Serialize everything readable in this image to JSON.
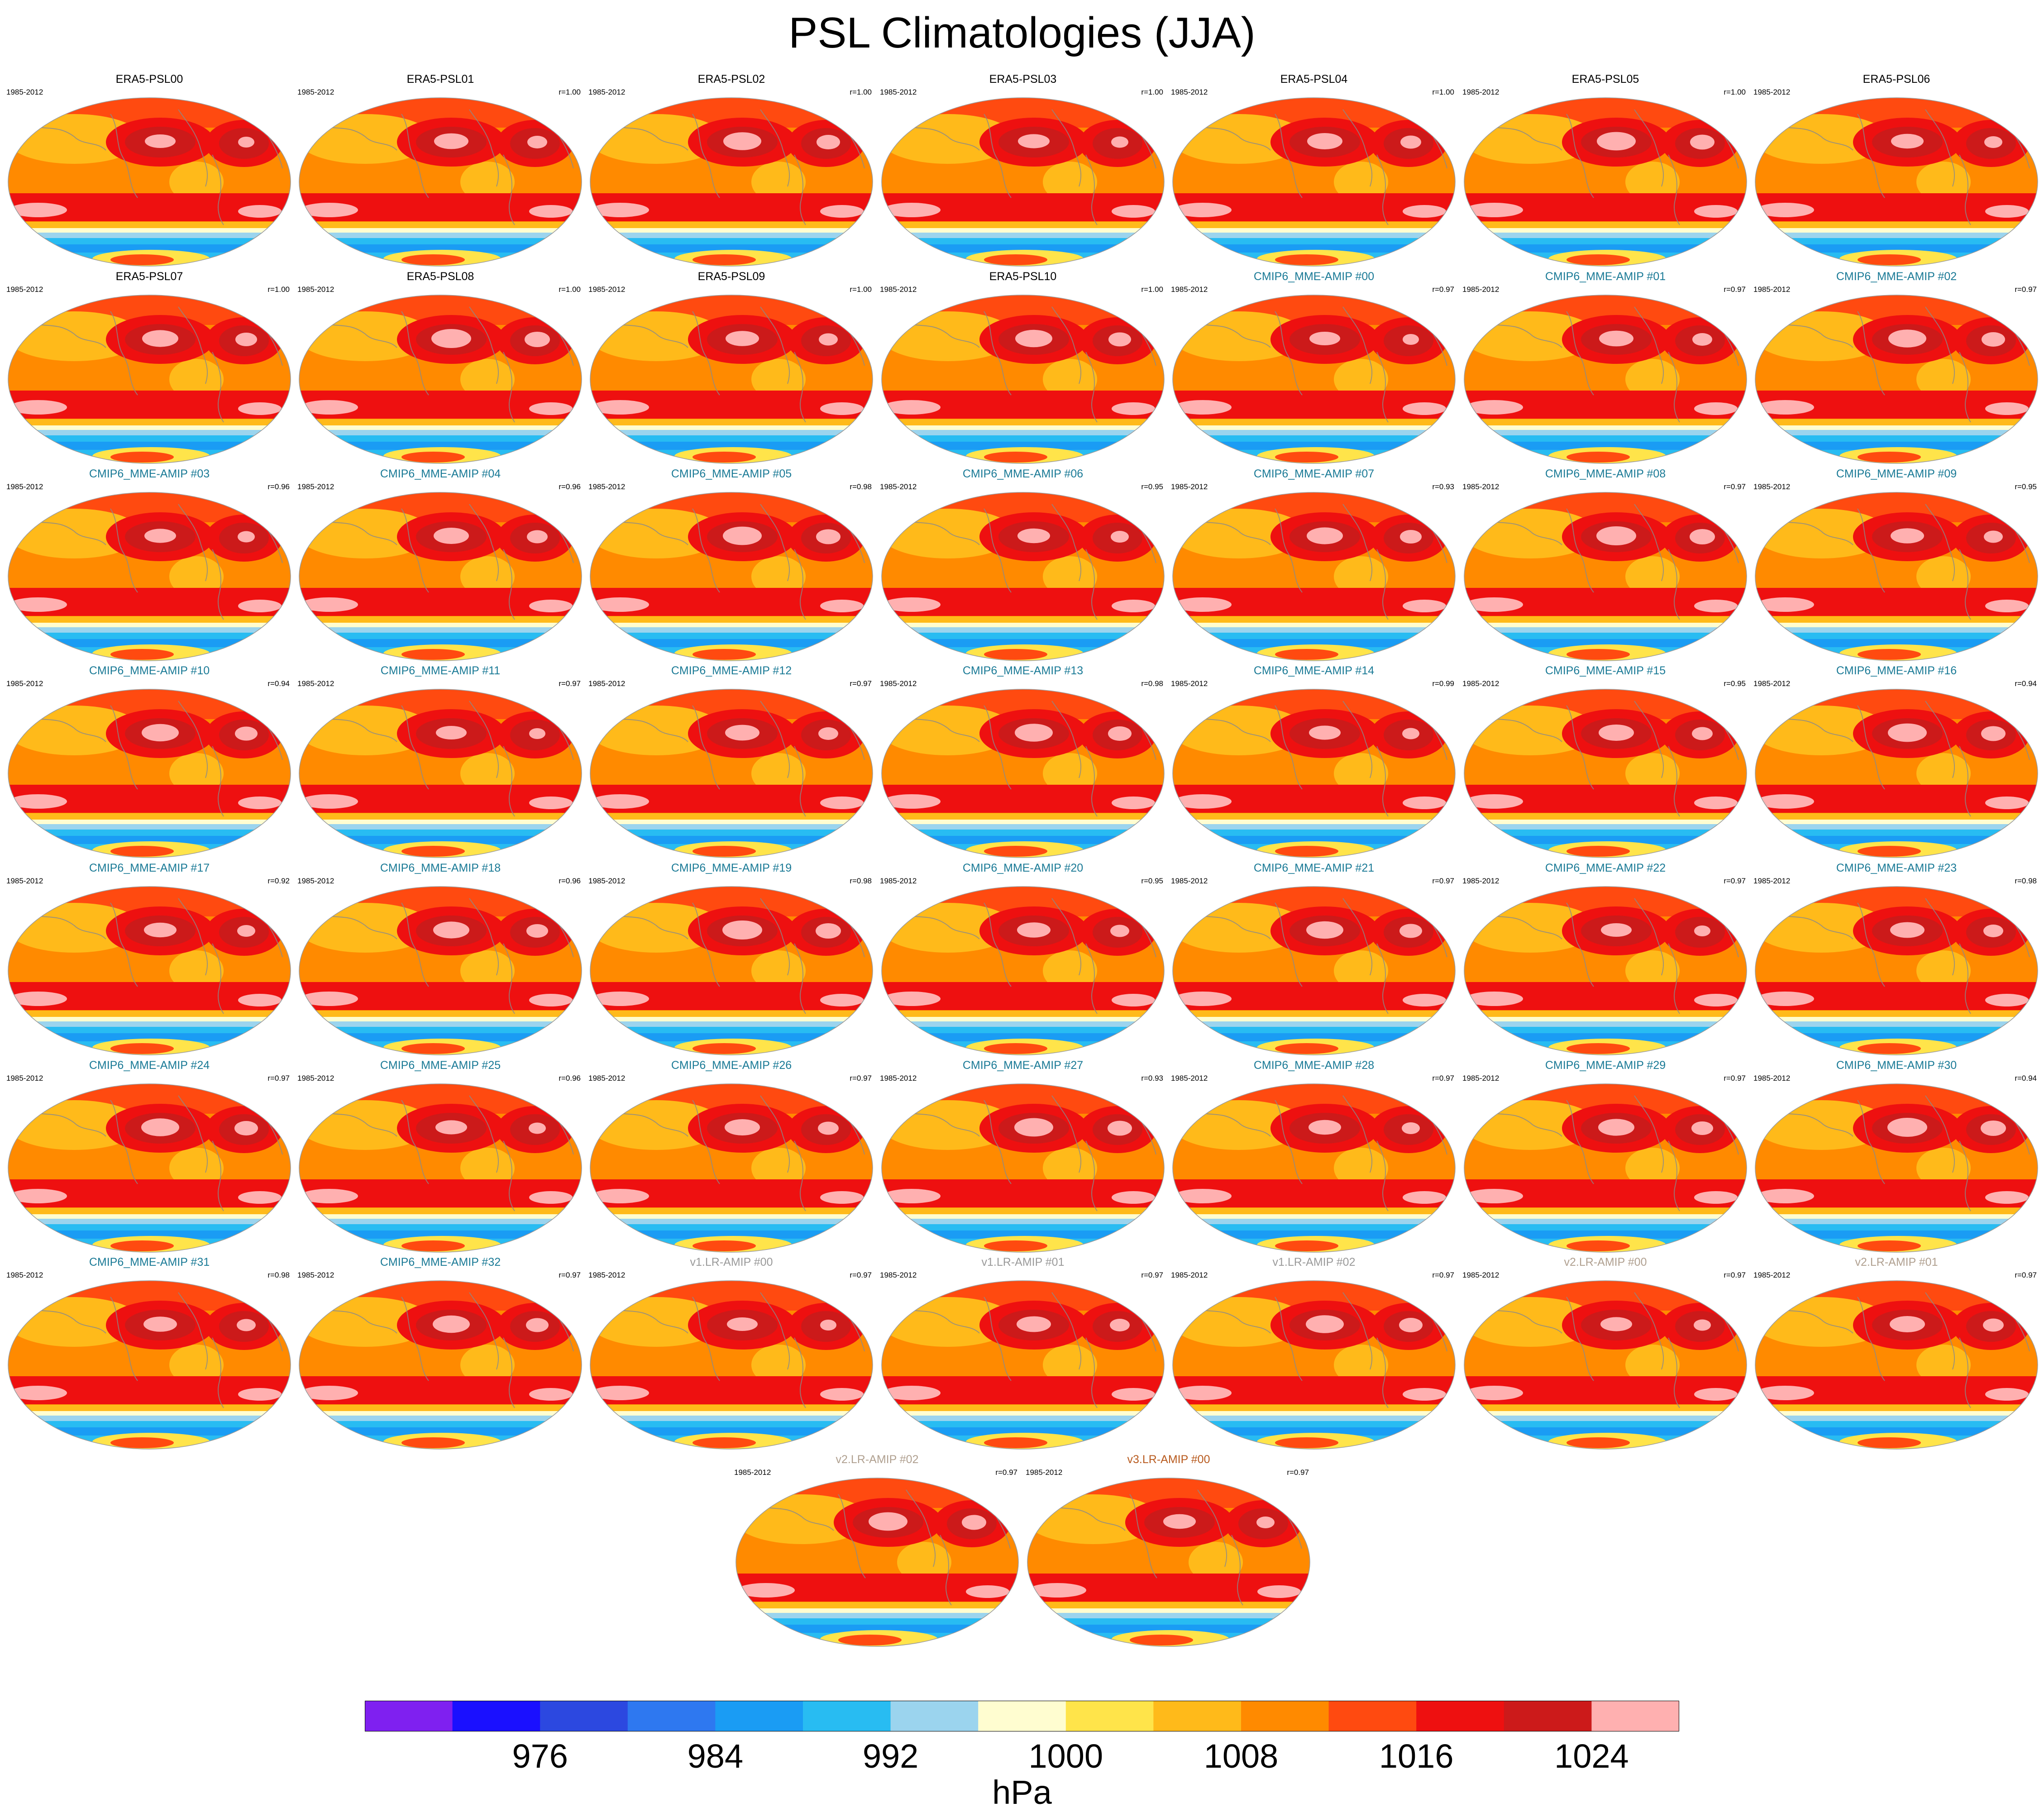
{
  "chart_data": {
    "type": "contour-map-grid",
    "title": "PSL Climatologies (JJA)",
    "variable": "PSL",
    "season": "JJA",
    "period": "1985-2012",
    "units": "hPa",
    "levels": [
      972,
      976,
      980,
      984,
      988,
      992,
      996,
      1000,
      1004,
      1008,
      1012,
      1016,
      1020,
      1024
    ],
    "colorbar_colors": [
      "#7f20f0",
      "#1a10ff",
      "#2c48e0",
      "#2e78f0",
      "#1a9cf4",
      "#28bcf2",
      "#9bd4ee",
      "#fffdd0",
      "#ffe44a",
      "#ffba1a",
      "#ff8a00",
      "#ff4a10",
      "#ee1010",
      "#cc1a1a",
      "#ffb0b0"
    ],
    "colorbar_tick_labels": [
      "976",
      "984",
      "992",
      "1000",
      "1008",
      "1016",
      "1024"
    ],
    "panels": [
      {
        "name": "ERA5-PSL00",
        "group": "era5",
        "r": null
      },
      {
        "name": "ERA5-PSL01",
        "group": "era5",
        "r": "r=1.00"
      },
      {
        "name": "ERA5-PSL02",
        "group": "era5",
        "r": "r=1.00"
      },
      {
        "name": "ERA5-PSL03",
        "group": "era5",
        "r": "r=1.00"
      },
      {
        "name": "ERA5-PSL04",
        "group": "era5",
        "r": "r=1.00"
      },
      {
        "name": "ERA5-PSL05",
        "group": "era5",
        "r": "r=1.00"
      },
      {
        "name": "ERA5-PSL06",
        "group": "era5",
        "r": null
      },
      {
        "name": "ERA5-PSL07",
        "group": "era5",
        "r": "r=1.00"
      },
      {
        "name": "ERA5-PSL08",
        "group": "era5",
        "r": "r=1.00"
      },
      {
        "name": "ERA5-PSL09",
        "group": "era5",
        "r": "r=1.00"
      },
      {
        "name": "ERA5-PSL10",
        "group": "era5",
        "r": "r=1.00"
      },
      {
        "name": "CMIP6_MME-AMIP  #00",
        "group": "cmip",
        "r": "r=0.97"
      },
      {
        "name": "CMIP6_MME-AMIP  #01",
        "group": "cmip",
        "r": "r=0.97"
      },
      {
        "name": "CMIP6_MME-AMIP  #02",
        "group": "cmip",
        "r": "r=0.97"
      },
      {
        "name": "CMIP6_MME-AMIP  #03",
        "group": "cmip",
        "r": "r=0.96"
      },
      {
        "name": "CMIP6_MME-AMIP  #04",
        "group": "cmip",
        "r": "r=0.96"
      },
      {
        "name": "CMIP6_MME-AMIP  #05",
        "group": "cmip",
        "r": "r=0.98"
      },
      {
        "name": "CMIP6_MME-AMIP  #06",
        "group": "cmip",
        "r": "r=0.95"
      },
      {
        "name": "CMIP6_MME-AMIP  #07",
        "group": "cmip",
        "r": "r=0.93"
      },
      {
        "name": "CMIP6_MME-AMIP  #08",
        "group": "cmip",
        "r": "r=0.97"
      },
      {
        "name": "CMIP6_MME-AMIP  #09",
        "group": "cmip",
        "r": "r=0.95"
      },
      {
        "name": "CMIP6_MME-AMIP  #10",
        "group": "cmip",
        "r": "r=0.94"
      },
      {
        "name": "CMIP6_MME-AMIP  #11",
        "group": "cmip",
        "r": "r=0.97"
      },
      {
        "name": "CMIP6_MME-AMIP  #12",
        "group": "cmip",
        "r": "r=0.97"
      },
      {
        "name": "CMIP6_MME-AMIP  #13",
        "group": "cmip",
        "r": "r=0.98"
      },
      {
        "name": "CMIP6_MME-AMIP  #14",
        "group": "cmip",
        "r": "r=0.99"
      },
      {
        "name": "CMIP6_MME-AMIP  #15",
        "group": "cmip",
        "r": "r=0.95"
      },
      {
        "name": "CMIP6_MME-AMIP  #16",
        "group": "cmip",
        "r": "r=0.94"
      },
      {
        "name": "CMIP6_MME-AMIP  #17",
        "group": "cmip",
        "r": "r=0.92"
      },
      {
        "name": "CMIP6_MME-AMIP  #18",
        "group": "cmip",
        "r": "r=0.96"
      },
      {
        "name": "CMIP6_MME-AMIP  #19",
        "group": "cmip",
        "r": "r=0.98"
      },
      {
        "name": "CMIP6_MME-AMIP  #20",
        "group": "cmip",
        "r": "r=0.95"
      },
      {
        "name": "CMIP6_MME-AMIP  #21",
        "group": "cmip",
        "r": "r=0.97"
      },
      {
        "name": "CMIP6_MME-AMIP  #22",
        "group": "cmip",
        "r": "r=0.97"
      },
      {
        "name": "CMIP6_MME-AMIP  #23",
        "group": "cmip",
        "r": "r=0.98"
      },
      {
        "name": "CMIP6_MME-AMIP  #24",
        "group": "cmip",
        "r": "r=0.97"
      },
      {
        "name": "CMIP6_MME-AMIP  #25",
        "group": "cmip",
        "r": "r=0.96"
      },
      {
        "name": "CMIP6_MME-AMIP  #26",
        "group": "cmip",
        "r": "r=0.97"
      },
      {
        "name": "CMIP6_MME-AMIP  #27",
        "group": "cmip",
        "r": "r=0.93"
      },
      {
        "name": "CMIP6_MME-AMIP  #28",
        "group": "cmip",
        "r": "r=0.97"
      },
      {
        "name": "CMIP6_MME-AMIP  #29",
        "group": "cmip",
        "r": "r=0.97"
      },
      {
        "name": "CMIP6_MME-AMIP  #30",
        "group": "cmip",
        "r": "r=0.94"
      },
      {
        "name": "CMIP6_MME-AMIP  #31",
        "group": "cmip",
        "r": "r=0.98"
      },
      {
        "name": "CMIP6_MME-AMIP  #32",
        "group": "cmip",
        "r": "r=0.97"
      },
      {
        "name": "v1.LR-AMIP  #00",
        "group": "v1",
        "r": "r=0.97"
      },
      {
        "name": "v1.LR-AMIP  #01",
        "group": "v1",
        "r": "r=0.97"
      },
      {
        "name": "v1.LR-AMIP  #02",
        "group": "v1",
        "r": "r=0.97"
      },
      {
        "name": "v2.LR-AMIP  #00",
        "group": "v2",
        "r": "r=0.97"
      },
      {
        "name": "v2.LR-AMIP  #01",
        "group": "v2",
        "r": "r=0.97"
      },
      {
        "name": "v2.LR-AMIP  #02",
        "group": "v2",
        "r": "r=0.97"
      },
      {
        "name": "v3.LR-AMIP  #00",
        "group": "v3",
        "r": "r=0.97"
      }
    ]
  }
}
